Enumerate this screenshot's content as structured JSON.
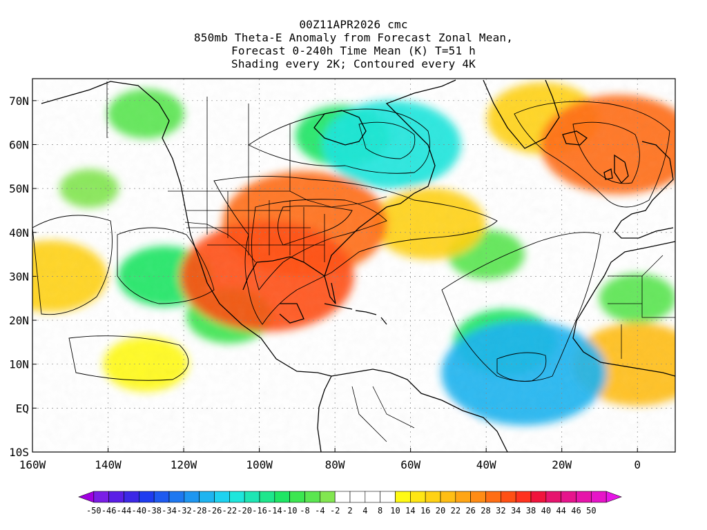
{
  "title": {
    "line1": "00Z11APR2026 cmc",
    "line2": "850mb Theta-E Anomaly from Forecast Zonal Mean,",
    "line3": "Forecast 0-240h Time Mean (K) T=51 h",
    "line4": "Shading every 2K; Contoured every 4K"
  },
  "axes": {
    "lon_range": [
      -160,
      10
    ],
    "lat_range": [
      -10,
      75
    ],
    "x_ticks": [
      {
        "lon": -160,
        "label": "160W"
      },
      {
        "lon": -140,
        "label": "140W"
      },
      {
        "lon": -120,
        "label": "120W"
      },
      {
        "lon": -100,
        "label": "100W"
      },
      {
        "lon": -80,
        "label": "80W"
      },
      {
        "lon": -60,
        "label": "60W"
      },
      {
        "lon": -40,
        "label": "40W"
      },
      {
        "lon": -20,
        "label": "20W"
      },
      {
        "lon": 0,
        "label": "0"
      }
    ],
    "y_ticks": [
      {
        "lat": 70,
        "label": "70N"
      },
      {
        "lat": 60,
        "label": "60N"
      },
      {
        "lat": 50,
        "label": "50N"
      },
      {
        "lat": 40,
        "label": "40N"
      },
      {
        "lat": 30,
        "label": "30N"
      },
      {
        "lat": 20,
        "label": "20N"
      },
      {
        "lat": 10,
        "label": "10N"
      },
      {
        "lat": 0,
        "label": "EQ"
      },
      {
        "lat": -10,
        "label": "10S"
      }
    ]
  },
  "colorbar": {
    "colors": [
      "#a000e0",
      "#7a1ee6",
      "#5a1ee6",
      "#3c28e6",
      "#1e3cf0",
      "#1e5af0",
      "#1e78f0",
      "#1e96f0",
      "#1eb4f0",
      "#1ed2f0",
      "#1ee6dc",
      "#1ee6b4",
      "#1ee68c",
      "#1ee664",
      "#3ce650",
      "#5ae650",
      "#82e650",
      "#ffffff",
      "#ffffff",
      "#ffffff",
      "#ffffff",
      "#fffa14",
      "#ffe614",
      "#ffd214",
      "#ffbe14",
      "#ffa514",
      "#ff8c14",
      "#ff6e14",
      "#ff5014",
      "#ff321e",
      "#f0143c",
      "#e6146e",
      "#e6148c",
      "#e614aa",
      "#e614c8",
      "#e614e6"
    ],
    "labels": [
      "-50",
      "-46",
      "-44",
      "-40",
      "-38",
      "-34",
      "-32",
      "-28",
      "-26",
      "-22",
      "-20",
      "-16",
      "-14",
      "-10",
      "-8",
      "-4",
      "-2",
      "2",
      "4",
      "8",
      "10",
      "14",
      "16",
      "20",
      "22",
      "26",
      "28",
      "32",
      "34",
      "38",
      "40",
      "44",
      "46",
      "50"
    ]
  },
  "field_regions": [
    {
      "name": "canada-cold-anomaly",
      "value": -12,
      "lon": -78,
      "lat": 62
    },
    {
      "name": "hudson-bay-core",
      "value": -22,
      "lon": -65,
      "lat": 60
    },
    {
      "name": "alaska-cold-anomaly",
      "value": -8,
      "lon": -130,
      "lat": 67
    },
    {
      "name": "eastern-us-warm-anomaly",
      "value": 28,
      "lon": -88,
      "lat": 42
    },
    {
      "name": "gulf-warm-anomaly",
      "value": 30,
      "lon": -98,
      "lat": 30
    },
    {
      "name": "atlantic-warm-tongue",
      "value": 16,
      "lon": -55,
      "lat": 42
    },
    {
      "name": "europe-warm-anomaly",
      "value": 26,
      "lon": -5,
      "lat": 60
    },
    {
      "name": "iceland-warm-anomaly",
      "value": 16,
      "lon": -25,
      "lat": 66
    },
    {
      "name": "tropical-atlantic-cool",
      "value": -14,
      "lon": -35,
      "lat": 15
    },
    {
      "name": "cape-verde-cold-core",
      "value": -28,
      "lon": -30,
      "lat": 8
    },
    {
      "name": "eastern-pacific-cool",
      "value": -12,
      "lon": -125,
      "lat": 30
    },
    {
      "name": "mexico-pacific-cool",
      "value": -10,
      "lon": -108,
      "lat": 21
    },
    {
      "name": "central-pacific-warm",
      "value": 16,
      "lon": -155,
      "lat": 30
    },
    {
      "name": "tropical-pacific-warm",
      "value": 10,
      "lon": -130,
      "lat": 10
    },
    {
      "name": "sahel-warm",
      "value": 20,
      "lon": 0,
      "lat": 10
    },
    {
      "name": "west-africa-cool",
      "value": -8,
      "lon": 0,
      "lat": 25
    },
    {
      "name": "pacific-cool-band",
      "value": -4,
      "lon": -145,
      "lat": 50
    },
    {
      "name": "north-atlantic-cool",
      "value": -8,
      "lon": -40,
      "lat": 35
    },
    {
      "name": "south-america-warm",
      "value": 8,
      "lon": -55,
      "lat": -5
    }
  ]
}
